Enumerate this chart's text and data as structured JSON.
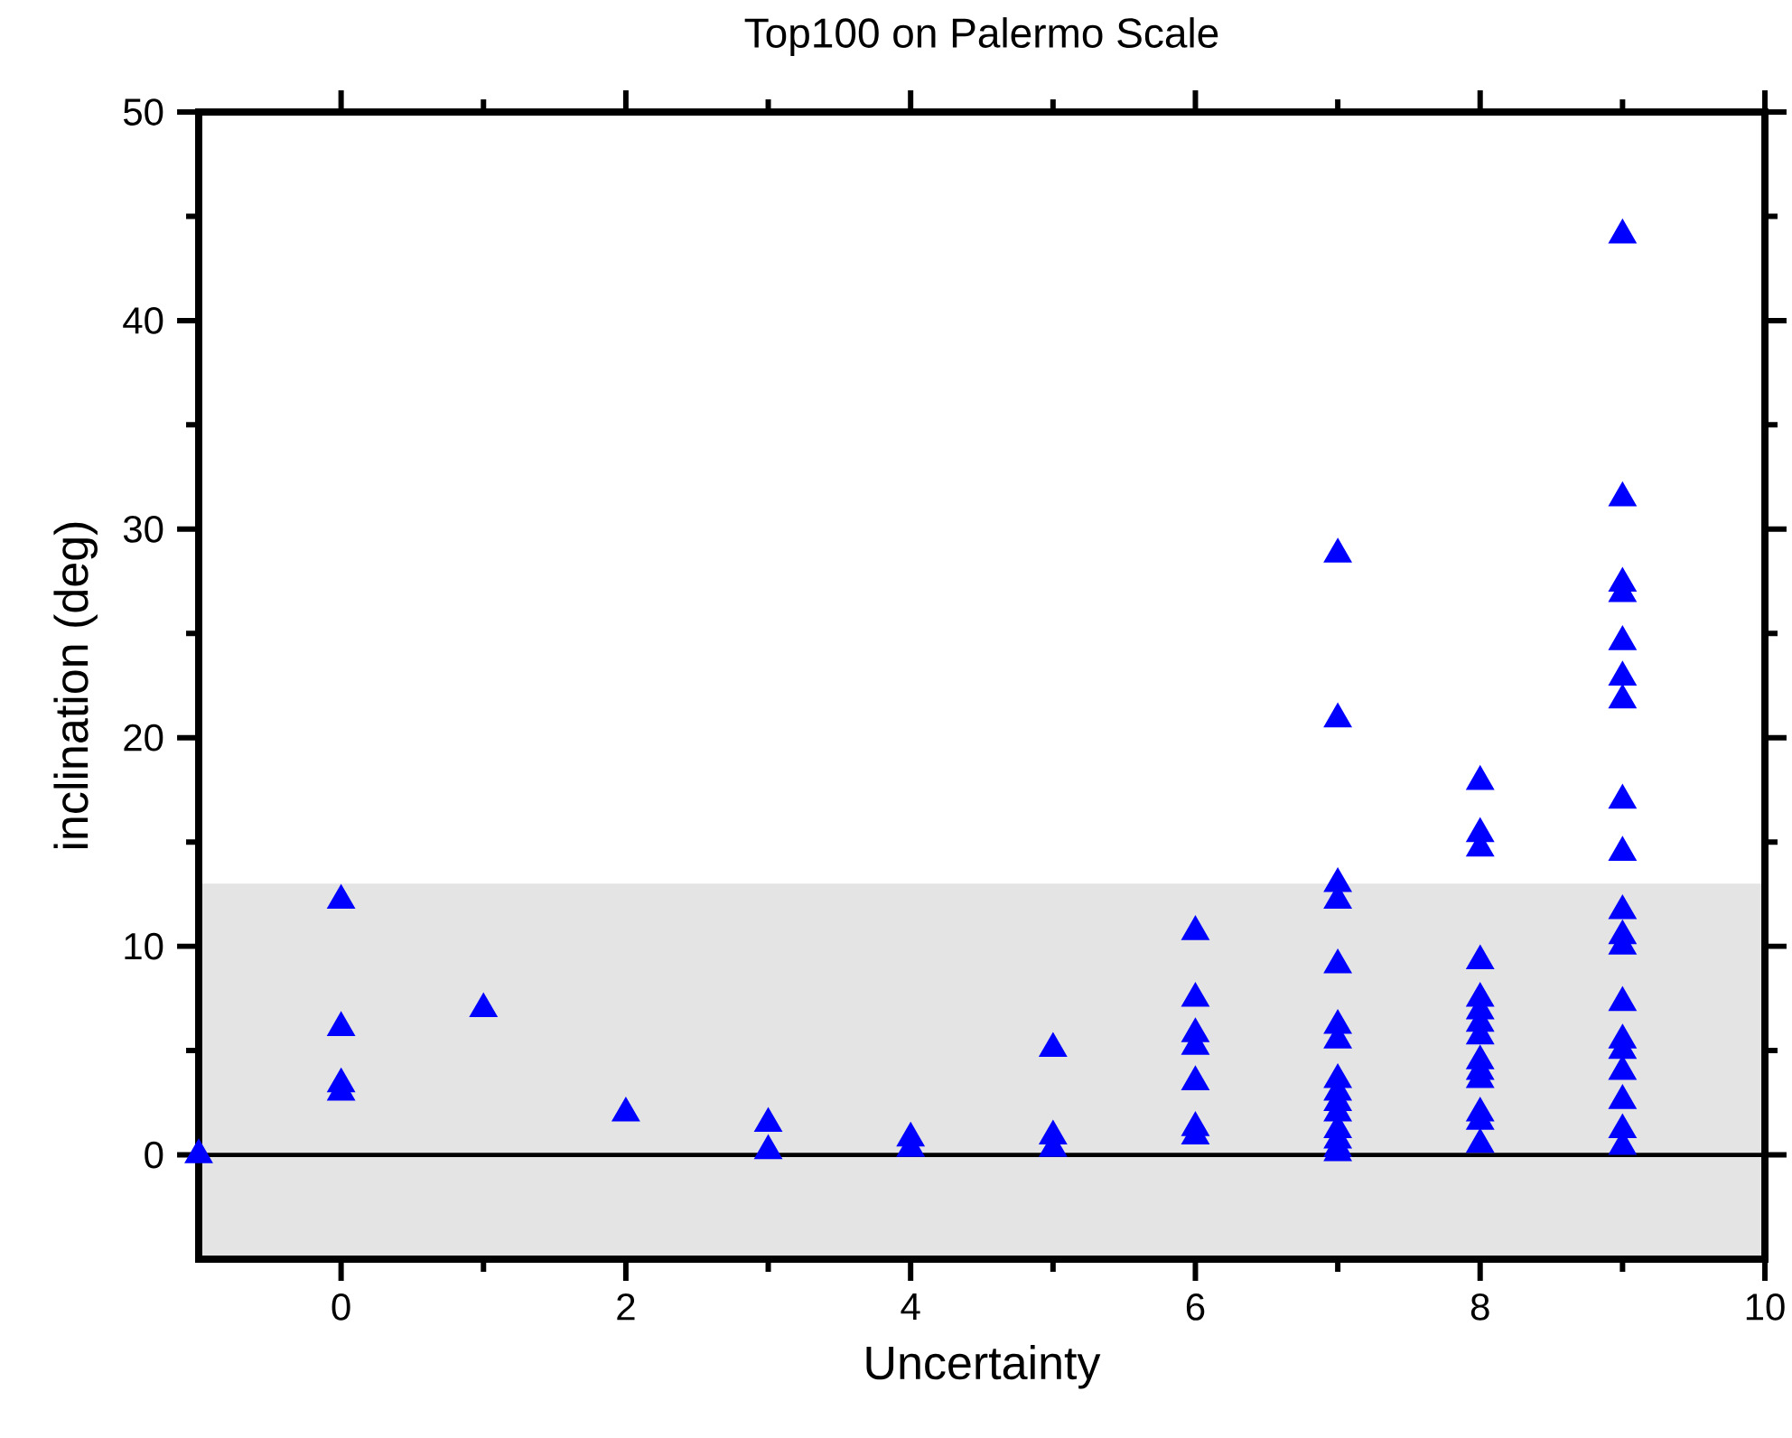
{
  "chart_data": {
    "type": "scatter",
    "title": "Top100 on Palermo Scale",
    "xlabel": "Uncertainty",
    "ylabel": "inclination (deg)",
    "x": [
      -1,
      0,
      0,
      0,
      0,
      1,
      2,
      3,
      3,
      4,
      4,
      5,
      5,
      5,
      6,
      6,
      6,
      6,
      6,
      6,
      6,
      7,
      7,
      7,
      7,
      7,
      7,
      7,
      7,
      7,
      7,
      7,
      7,
      7,
      7,
      7,
      8,
      8,
      8,
      8,
      8,
      8,
      8,
      8,
      8,
      8,
      8,
      8,
      8,
      8,
      9,
      9,
      9,
      9,
      9,
      9,
      9,
      9,
      9,
      9,
      9,
      9,
      9,
      9,
      9,
      9,
      9,
      9,
      9
    ],
    "values": [
      0,
      12.2,
      6.1,
      3.4,
      3.0,
      7.0,
      2.0,
      1.5,
      0.2,
      0.8,
      0.3,
      5.1,
      0.9,
      0.3,
      10.7,
      7.5,
      5.8,
      5.2,
      3.5,
      1.3,
      0.9,
      28.8,
      20.9,
      13.0,
      12.2,
      9.1,
      6.2,
      5.5,
      3.6,
      3.0,
      2.5,
      2.0,
      1.2,
      0.7,
      0.3,
      0.1,
      17.9,
      15.4,
      14.7,
      9.3,
      7.5,
      6.9,
      6.3,
      5.7,
      4.5,
      4.0,
      3.6,
      2.0,
      1.6,
      0.5,
      44.1,
      31.5,
      27.4,
      26.9,
      24.6,
      22.9,
      21.8,
      17.0,
      14.5,
      11.7,
      10.5,
      10.0,
      7.3,
      5.5,
      5.0,
      4.0,
      2.6,
      1.2,
      0.4
    ],
    "color": "#0000ff",
    "marker": "triangle",
    "xlim": [
      -1,
      10
    ],
    "ylim": [
      -5,
      50
    ],
    "xticks": [
      0,
      2,
      4,
      6,
      8,
      10
    ],
    "yticks": [
      0,
      10,
      20,
      30,
      40,
      50
    ],
    "ref_lines": [
      {
        "axis": "y",
        "value": 0,
        "color": "#000000"
      }
    ],
    "bands": [
      {
        "axis": "y",
        "from": -5,
        "to": 13,
        "color": "#e4e4e4"
      }
    ],
    "grid": false
  }
}
